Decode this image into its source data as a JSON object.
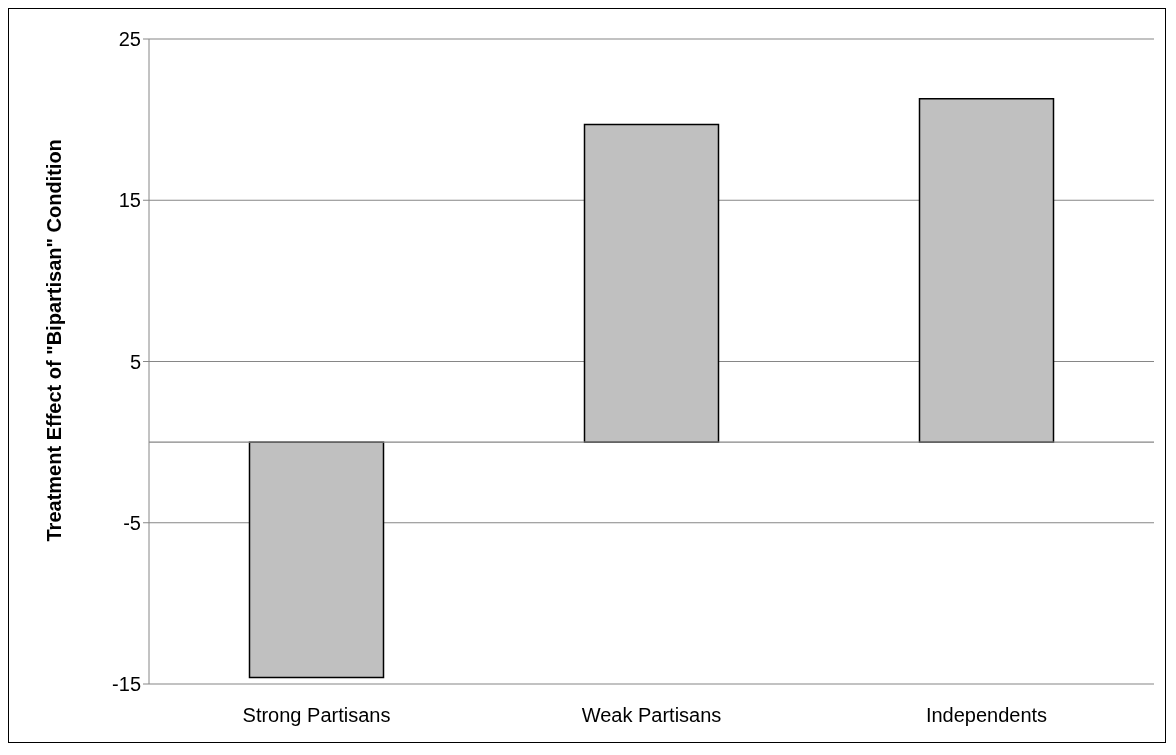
{
  "chart_data": {
    "type": "bar",
    "ylabel": "Treatment Effect of \"Bipartisan\" Condition",
    "categories": [
      "Strong Partisans",
      "Weak Partisans",
      "Independents"
    ],
    "values": [
      -14.6,
      19.7,
      21.3
    ],
    "color": "#c0c0c0",
    "ylim": [
      -15,
      25
    ],
    "yticks": [
      -15,
      -5,
      5,
      15,
      25
    ],
    "grid": "y"
  }
}
